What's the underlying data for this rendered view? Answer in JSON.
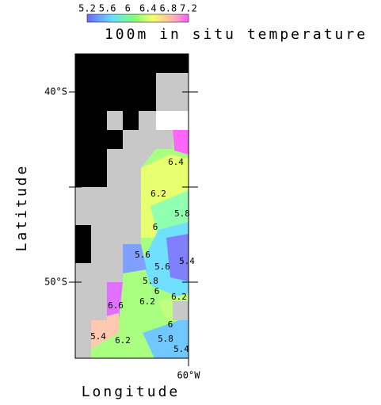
{
  "chart_data": {
    "type": "contour",
    "title": "100m in situ temperature",
    "xlabel": "Longitude",
    "ylabel": "Latitude",
    "xlim": [
      -66,
      -60
    ],
    "ylim": [
      -54,
      -38
    ],
    "xticks": [
      {
        "value": -60,
        "label": "60°W"
      }
    ],
    "yticks": [
      {
        "value": -40,
        "label": "40°S"
      },
      {
        "value": -45,
        "label": null
      },
      {
        "value": -50,
        "label": "50°S"
      }
    ],
    "colorbar": {
      "lim": [
        5.2,
        7.2
      ],
      "ticks": [
        5.2,
        5.6,
        6.0,
        6.4,
        6.8,
        7.2
      ]
    },
    "contour_labels": [
      6.4,
      6.2,
      5.8,
      6.0,
      5.6,
      5.6,
      5.4,
      5.8,
      6.0,
      6.2,
      6.6,
      6.2,
      5.4,
      6.2,
      6.0,
      5.8,
      5.4
    ]
  }
}
